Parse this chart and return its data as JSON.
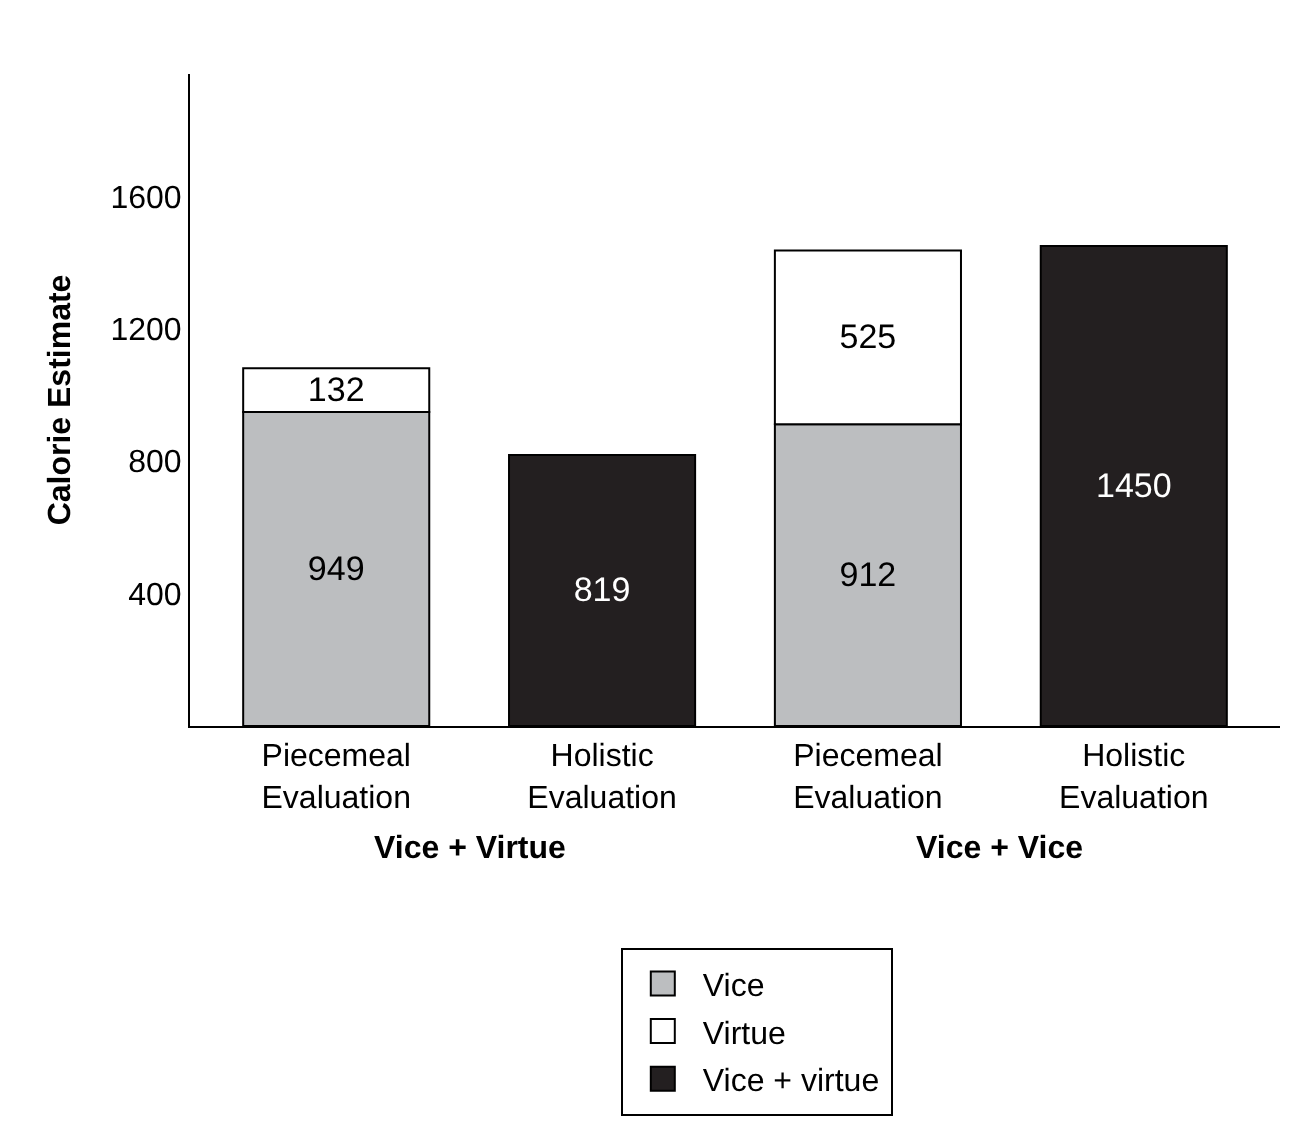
{
  "chart_data": {
    "type": "bar",
    "stacked": true,
    "ylabel": "Calorie Estimate",
    "categories": [
      "Piecemeal Evaluation",
      "Holistic Evaluation",
      "Piecemeal Evaluation",
      "Holistic Evaluation"
    ],
    "series": [
      {
        "name": "Vice",
        "color": "#bcbec0",
        "values": [
          949,
          null,
          912,
          null
        ]
      },
      {
        "name": "Virtue",
        "color": "#ffffff",
        "values": [
          132,
          null,
          525,
          null
        ]
      },
      {
        "name": "Vice + virtue",
        "color": "#231f20",
        "values": [
          null,
          819,
          null,
          1450
        ]
      }
    ],
    "ylim": [
      0,
      1970
    ],
    "yticks": [
      400,
      800,
      1200,
      1600
    ],
    "annotations": [
      "Vice + Virtue",
      "Vice + Vice"
    ],
    "data_labels": true,
    "legend": "bottom"
  }
}
